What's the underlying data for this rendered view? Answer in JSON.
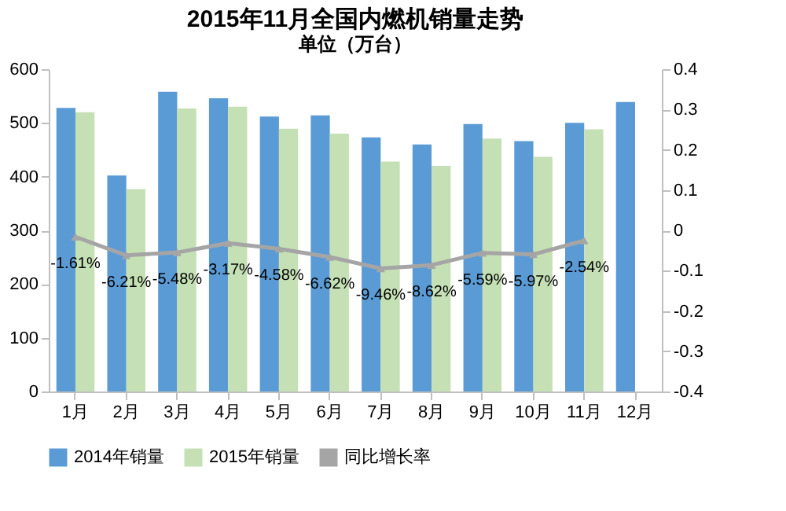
{
  "chart_data": {
    "type": "bar",
    "title": "2015年11月全国内燃机销量走势",
    "subtitle": "单位（万台）",
    "categories": [
      "1月",
      "2月",
      "3月",
      "4月",
      "5月",
      "6月",
      "7月",
      "8月",
      "9月",
      "10月",
      "11月",
      "12月"
    ],
    "series": [
      {
        "name": "2014年销量",
        "color": "#5b9bd5",
        "values": [
          528,
          402,
          558,
          546,
          512,
          514,
          473,
          460,
          498,
          466,
          500,
          539
        ]
      },
      {
        "name": "2015年销量",
        "color": "#c5e0b4",
        "values": [
          520,
          377,
          527,
          530,
          489,
          480,
          428,
          420,
          471,
          437,
          488,
          null
        ]
      },
      {
        "name": "同比增长率",
        "type": "line",
        "axis": "y2",
        "color": "#a5a5a5",
        "marker": "triangle",
        "values": [
          -0.0161,
          -0.0621,
          -0.0548,
          -0.0317,
          -0.0458,
          -0.0662,
          -0.0946,
          -0.0862,
          -0.0559,
          -0.0597,
          -0.0254,
          null
        ],
        "value_labels": [
          "-1.61%",
          "-6.21%",
          "-5.48%",
          "-3.17%",
          "-4.58%",
          "-6.62%",
          "-9.46%",
          "-8.62%",
          "-5.59%",
          "-5.97%",
          "-2.54%",
          null
        ]
      }
    ],
    "ylim": [
      0,
      600
    ],
    "yticks": [
      0,
      100,
      200,
      300,
      400,
      500,
      600
    ],
    "y2lim": [
      -0.4,
      0.4
    ],
    "y2ticks": [
      -0.4,
      -0.3,
      -0.2,
      -0.1,
      0,
      0.1,
      0.2,
      0.3,
      0.4
    ],
    "grid": false,
    "legend": "bottom"
  }
}
